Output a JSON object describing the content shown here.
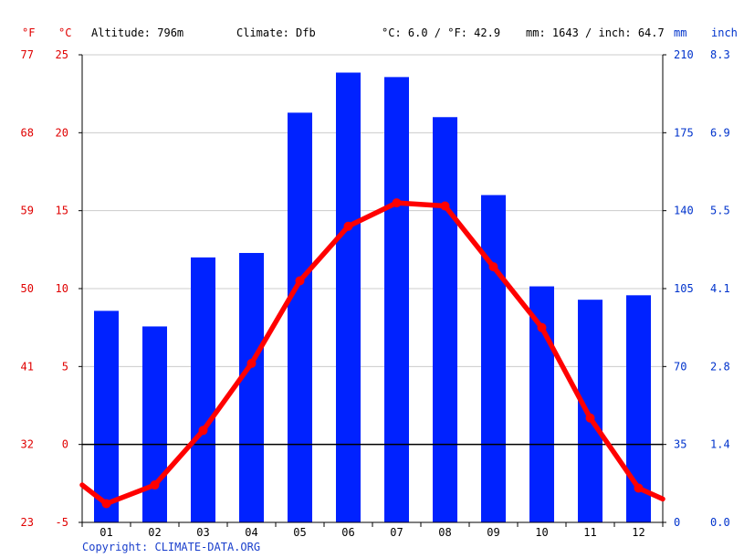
{
  "header": {
    "unit_f": "°F",
    "unit_c": "°C",
    "altitude": "Altitude: 796m",
    "climate": "Climate: Dfb",
    "temp_avg": "°C: 6.0 / °F: 42.9",
    "precip_total": "mm: 1643 / inch: 64.7",
    "unit_mm": "mm",
    "unit_inch": "inch"
  },
  "footer": {
    "copyright": "Copyright: CLIMATE-DATA.ORG"
  },
  "colors": {
    "temp_line": "#ff0000",
    "precip_bar": "#0022ff",
    "axis_left": "#e00000",
    "axis_right": "#0033cc",
    "grid": "#cccccc"
  },
  "chart_data": {
    "type": "bar",
    "categories": [
      "01",
      "02",
      "03",
      "04",
      "05",
      "06",
      "07",
      "08",
      "09",
      "10",
      "11",
      "12"
    ],
    "series": [
      {
        "axis": "right",
        "type": "bar",
        "values": [
          95,
          88,
          119,
          121,
          184,
          202,
          200,
          182,
          147,
          106,
          100,
          102
        ]
      },
      {
        "axis": "left",
        "type": "line",
        "values": [
          -3.8,
          -2.6,
          0.9,
          5.2,
          10.5,
          14.0,
          15.5,
          15.3,
          11.4,
          7.5,
          1.7,
          -2.8
        ]
      }
    ],
    "line_extension": {
      "start": -2.6,
      "end": -3.5
    },
    "y_left_celsius": {
      "ticks": [
        -5,
        0,
        5,
        10,
        15,
        20,
        25
      ],
      "ylim": [
        -5,
        25
      ]
    },
    "y_left_fahrenheit": {
      "ticks": [
        "23",
        "32",
        "41",
        "50",
        "59",
        "68",
        "77"
      ]
    },
    "y_right_mm": {
      "ticks": [
        "0",
        "35",
        "70",
        "105",
        "140",
        "175",
        "210"
      ],
      "ylim": [
        0,
        210
      ]
    },
    "y_right_inch": {
      "ticks": [
        "0.0",
        "1.4",
        "2.8",
        "4.1",
        "5.5",
        "6.9",
        "8.3"
      ]
    },
    "grid": true,
    "zero_line": true
  }
}
